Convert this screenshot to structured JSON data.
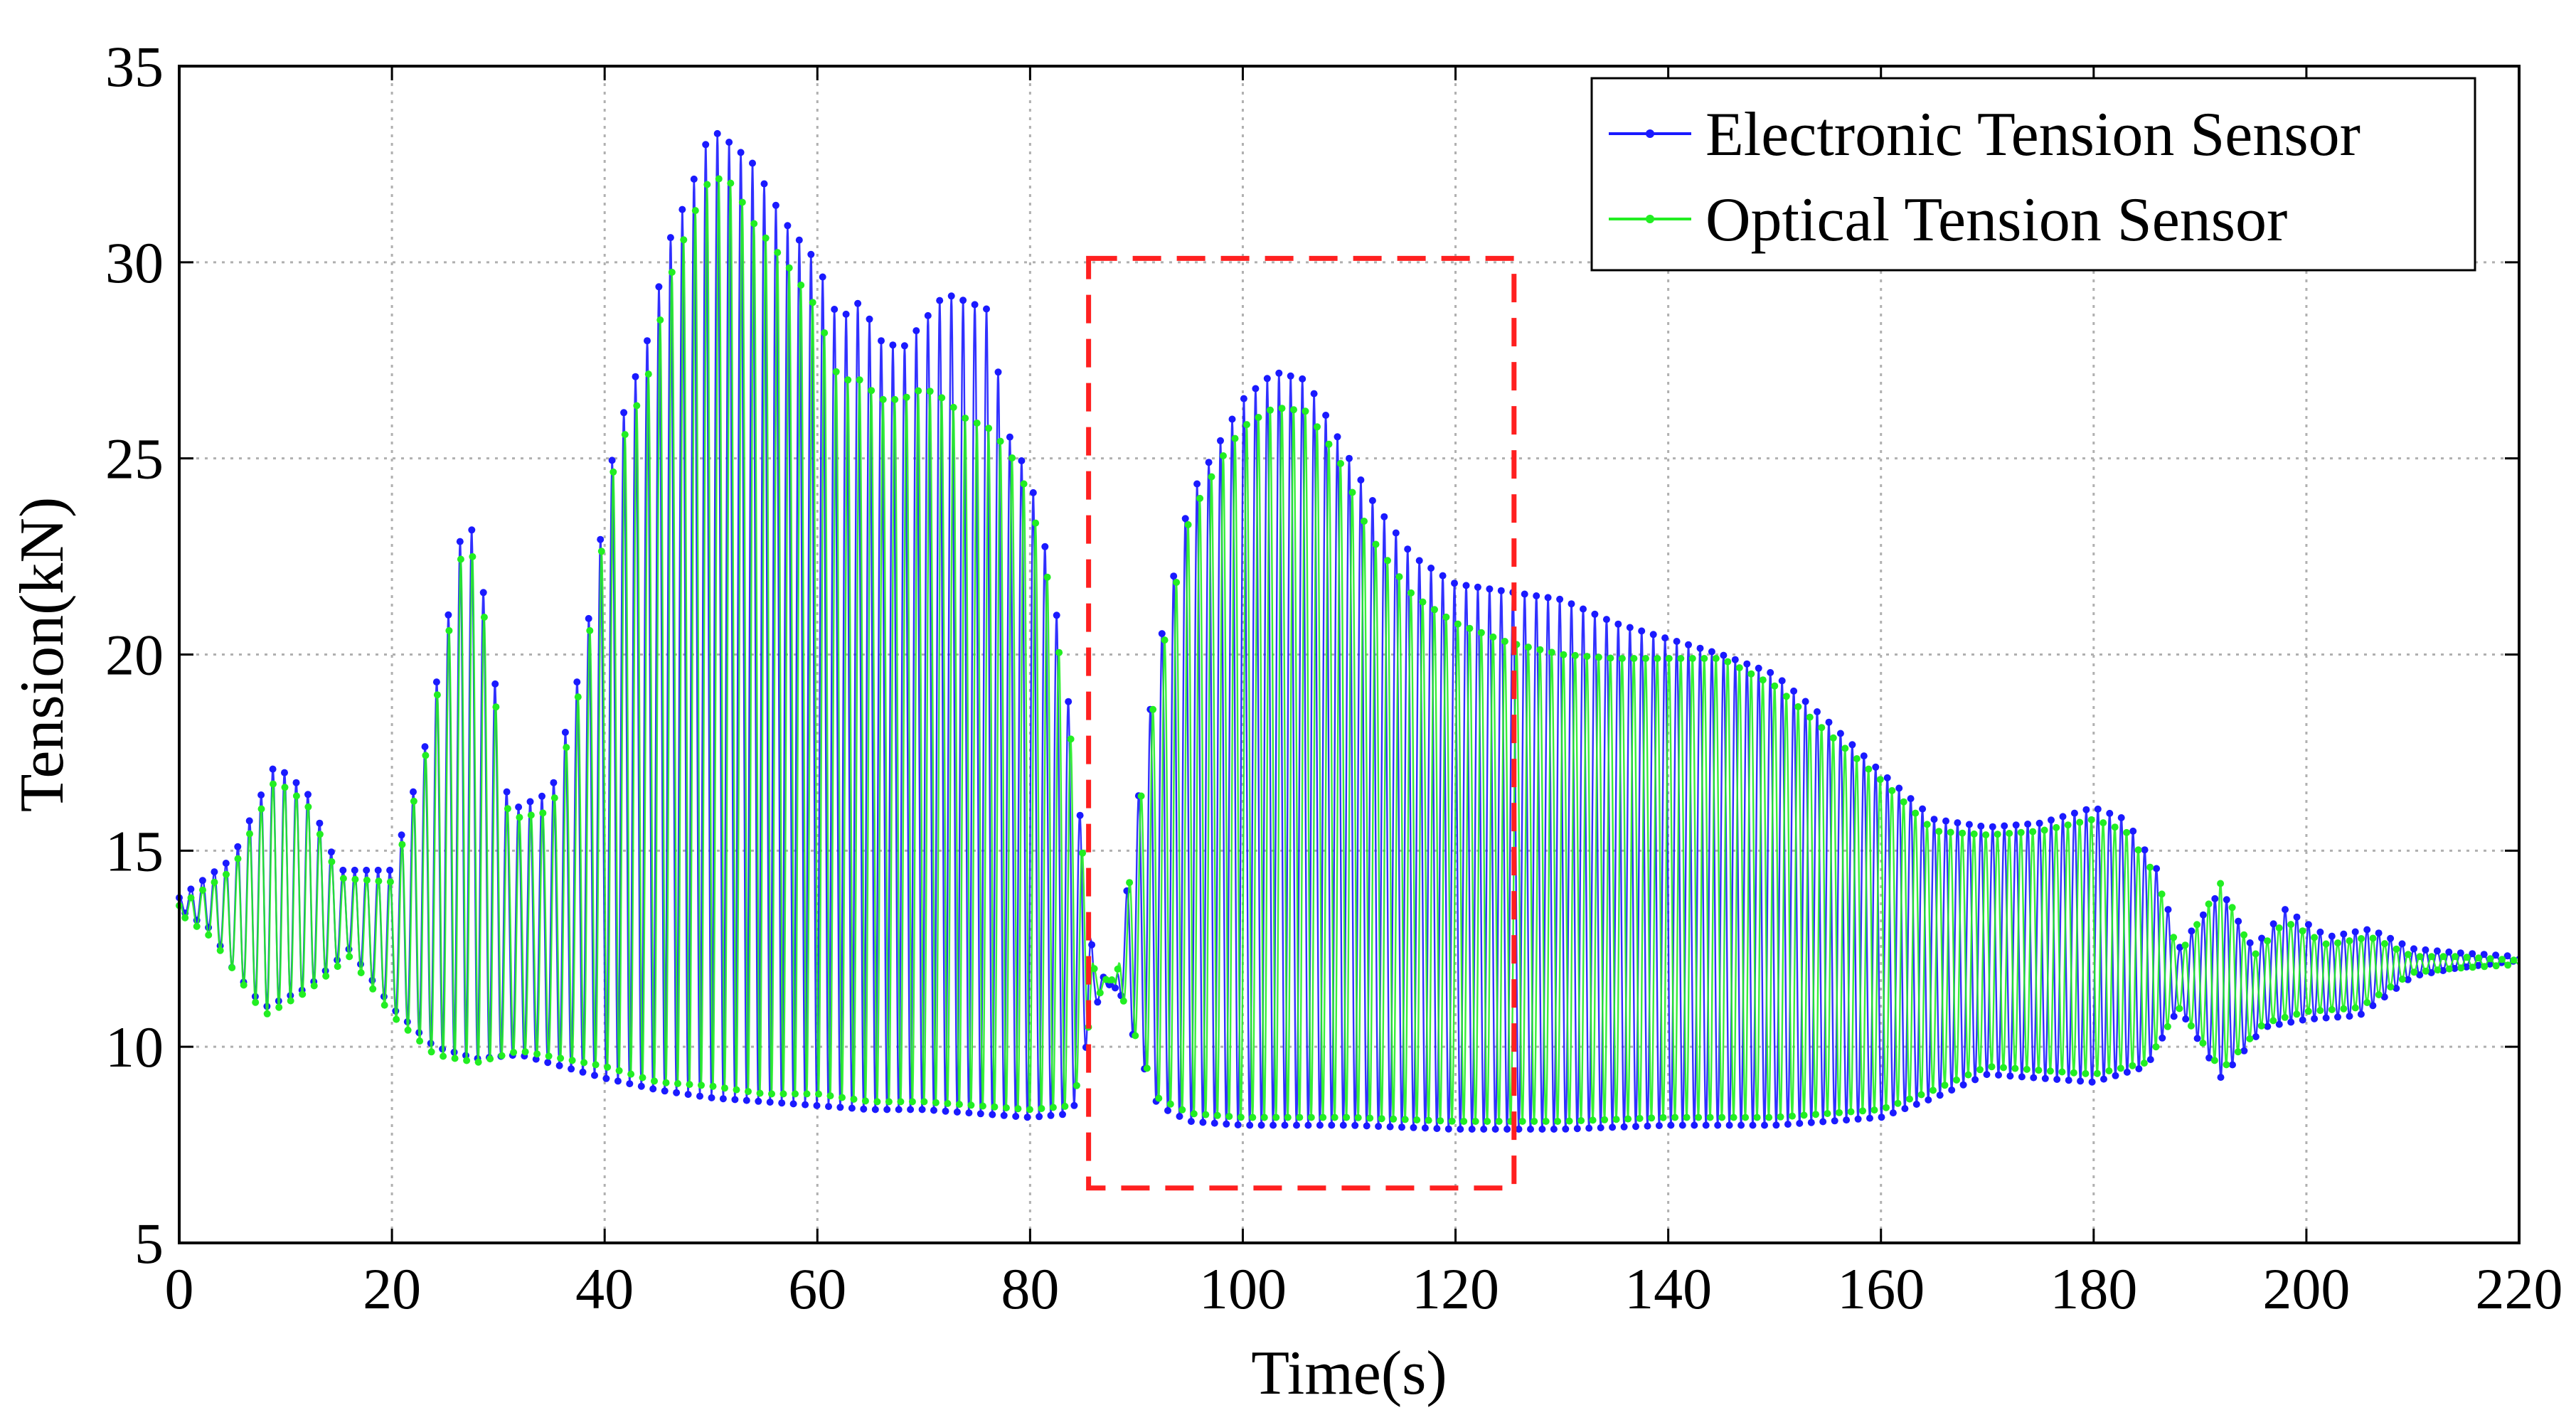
{
  "chart_data": {
    "type": "line",
    "title": "",
    "xlabel": "Time(s)",
    "ylabel": "Tension(kN)",
    "xlim": [
      0,
      220
    ],
    "ylim": [
      5,
      35
    ],
    "xticks": [
      0,
      20,
      40,
      60,
      80,
      100,
      120,
      140,
      160,
      180,
      200,
      220
    ],
    "yticks": [
      5,
      10,
      15,
      20,
      25,
      30,
      35
    ],
    "xtick_labels": [
      "0",
      "20",
      "40",
      "60",
      "80",
      "100",
      "120",
      "140",
      "160",
      "180",
      "200",
      "220"
    ],
    "ytick_labels": [
      "5",
      "10",
      "15",
      "20",
      "25",
      "30",
      "35"
    ],
    "grid": true,
    "legend_position": "top-right",
    "colors": {
      "electronic": "#1a1aff",
      "optical": "#22ee22",
      "highlight_box": "#ff2020",
      "grid": "#b0b0b0",
      "axis": "#000000"
    },
    "series": [
      {
        "name": "Electronic Tension Sensor",
        "color": "#1a1aff",
        "envelope_upper": [
          [
            0,
            13.8
          ],
          [
            5,
            14.8
          ],
          [
            9,
            17.2
          ],
          [
            12,
            16.5
          ],
          [
            15,
            14.5
          ],
          [
            20,
            14.5
          ],
          [
            23,
            17.5
          ],
          [
            25,
            20.5
          ],
          [
            27,
            23.9
          ],
          [
            29,
            21
          ],
          [
            31,
            16
          ],
          [
            35,
            16.5
          ],
          [
            38,
            20
          ],
          [
            41,
            25.5
          ],
          [
            44,
            28
          ],
          [
            46,
            30.5
          ],
          [
            48,
            31.8
          ],
          [
            50,
            33.4
          ],
          [
            52,
            33
          ],
          [
            54,
            32.5
          ],
          [
            57,
            31
          ],
          [
            60,
            30
          ],
          [
            62,
            28.5
          ],
          [
            64,
            29
          ],
          [
            66,
            28
          ],
          [
            68,
            27.8
          ],
          [
            70,
            28.5
          ],
          [
            72,
            29.2
          ],
          [
            74,
            29
          ],
          [
            76,
            28.8
          ],
          [
            78,
            25.6
          ],
          [
            80,
            24.5
          ],
          [
            82,
            22
          ],
          [
            84,
            18
          ],
          [
            86,
            12
          ],
          [
            88,
            11.5
          ],
          [
            90,
            16
          ],
          [
            92,
            20
          ],
          [
            95,
            24
          ],
          [
            98,
            25.5
          ],
          [
            100,
            26.5
          ],
          [
            103,
            27.2
          ],
          [
            106,
            27
          ],
          [
            109,
            25.5
          ],
          [
            112,
            24
          ],
          [
            116,
            22.5
          ],
          [
            120,
            21.8
          ],
          [
            125,
            21.6
          ],
          [
            130,
            21.4
          ],
          [
            135,
            20.8
          ],
          [
            140,
            20.4
          ],
          [
            145,
            20
          ],
          [
            150,
            19.5
          ],
          [
            155,
            18.3
          ],
          [
            160,
            17
          ],
          [
            165,
            15.8
          ],
          [
            170,
            15.6
          ],
          [
            175,
            15.7
          ],
          [
            180,
            16.1
          ],
          [
            183,
            15.8
          ],
          [
            186,
            14.5
          ],
          [
            188,
            12.5
          ],
          [
            192,
            14
          ],
          [
            195,
            12.5
          ],
          [
            198,
            13.5
          ],
          [
            202,
            12.8
          ],
          [
            206,
            13
          ],
          [
            210,
            12.5
          ],
          [
            214,
            12.4
          ],
          [
            220,
            12.3
          ]
        ],
        "envelope_lower": [
          [
            0,
            13.5
          ],
          [
            3,
            13
          ],
          [
            5,
            12
          ],
          [
            8,
            11
          ],
          [
            12,
            11.5
          ],
          [
            16,
            12.5
          ],
          [
            20,
            11
          ],
          [
            24,
            10
          ],
          [
            28,
            9.7
          ],
          [
            32,
            9.8
          ],
          [
            36,
            9.5
          ],
          [
            40,
            9.2
          ],
          [
            45,
            8.9
          ],
          [
            50,
            8.7
          ],
          [
            55,
            8.6
          ],
          [
            60,
            8.5
          ],
          [
            65,
            8.4
          ],
          [
            70,
            8.4
          ],
          [
            75,
            8.3
          ],
          [
            80,
            8.2
          ],
          [
            84,
            8.3
          ],
          [
            86,
            11
          ],
          [
            88,
            11.8
          ],
          [
            90,
            10
          ],
          [
            92,
            8.5
          ],
          [
            95,
            8.1
          ],
          [
            100,
            8
          ],
          [
            110,
            8
          ],
          [
            120,
            7.9
          ],
          [
            130,
            7.9
          ],
          [
            140,
            8
          ],
          [
            150,
            8
          ],
          [
            160,
            8.2
          ],
          [
            165,
            8.7
          ],
          [
            170,
            9.3
          ],
          [
            175,
            9.2
          ],
          [
            180,
            9.1
          ],
          [
            185,
            9.5
          ],
          [
            188,
            11
          ],
          [
            192,
            9.2
          ],
          [
            196,
            10.5
          ],
          [
            200,
            10.7
          ],
          [
            205,
            10.8
          ],
          [
            210,
            11.8
          ],
          [
            214,
            12
          ],
          [
            220,
            12.2
          ]
        ]
      },
      {
        "name": "Optical Tension Sensor",
        "color": "#22ee22",
        "envelope_upper": [
          [
            0,
            13.6
          ],
          [
            5,
            14.5
          ],
          [
            9,
            16.8
          ],
          [
            12,
            16.2
          ],
          [
            15,
            14.3
          ],
          [
            20,
            14.2
          ],
          [
            23,
            17.2
          ],
          [
            25,
            20
          ],
          [
            27,
            23.3
          ],
          [
            29,
            20.5
          ],
          [
            31,
            15.8
          ],
          [
            35,
            16
          ],
          [
            38,
            19.5
          ],
          [
            41,
            25
          ],
          [
            44,
            27
          ],
          [
            46,
            29.5
          ],
          [
            48,
            31
          ],
          [
            50,
            32.2
          ],
          [
            52,
            32
          ],
          [
            54,
            31
          ],
          [
            57,
            30
          ],
          [
            60,
            28.8
          ],
          [
            62,
            27
          ],
          [
            64,
            27
          ],
          [
            66,
            26.5
          ],
          [
            68,
            26.5
          ],
          [
            70,
            26.8
          ],
          [
            72,
            26.5
          ],
          [
            74,
            26
          ],
          [
            76,
            25.8
          ],
          [
            78,
            25.2
          ],
          [
            80,
            24
          ],
          [
            82,
            21.5
          ],
          [
            84,
            17.5
          ],
          [
            86,
            12
          ],
          [
            88,
            11.5
          ],
          [
            90,
            15.5
          ],
          [
            92,
            19.5
          ],
          [
            95,
            23.5
          ],
          [
            98,
            25
          ],
          [
            100,
            25.8
          ],
          [
            103,
            26.3
          ],
          [
            106,
            26.2
          ],
          [
            109,
            25
          ],
          [
            112,
            23
          ],
          [
            116,
            21.5
          ],
          [
            120,
            20.8
          ],
          [
            125,
            20.3
          ],
          [
            130,
            20
          ],
          [
            135,
            19.9
          ],
          [
            140,
            19.9
          ],
          [
            145,
            19.9
          ],
          [
            150,
            19.2
          ],
          [
            155,
            18
          ],
          [
            160,
            16.8
          ],
          [
            165,
            15.5
          ],
          [
            170,
            15.4
          ],
          [
            175,
            15.5
          ],
          [
            180,
            15.8
          ],
          [
            183,
            15.5
          ],
          [
            186,
            14.3
          ],
          [
            188,
            12.3
          ],
          [
            192,
            14.2
          ],
          [
            195,
            12.3
          ],
          [
            198,
            13.2
          ],
          [
            202,
            12.6
          ],
          [
            206,
            12.8
          ],
          [
            210,
            12.3
          ],
          [
            214,
            12.3
          ],
          [
            220,
            12.2
          ]
        ],
        "envelope_lower": [
          [
            0,
            13.4
          ],
          [
            3,
            12.8
          ],
          [
            5,
            12
          ],
          [
            8,
            10.8
          ],
          [
            12,
            11.4
          ],
          [
            16,
            12.3
          ],
          [
            20,
            10.8
          ],
          [
            24,
            9.8
          ],
          [
            28,
            9.6
          ],
          [
            32,
            9.9
          ],
          [
            36,
            9.7
          ],
          [
            40,
            9.5
          ],
          [
            45,
            9.1
          ],
          [
            50,
            9
          ],
          [
            55,
            8.8
          ],
          [
            60,
            8.8
          ],
          [
            65,
            8.6
          ],
          [
            70,
            8.6
          ],
          [
            75,
            8.5
          ],
          [
            80,
            8.4
          ],
          [
            84,
            8.5
          ],
          [
            86,
            11.2
          ],
          [
            88,
            11.8
          ],
          [
            90,
            10.2
          ],
          [
            92,
            8.7
          ],
          [
            95,
            8.3
          ],
          [
            100,
            8.2
          ],
          [
            110,
            8.2
          ],
          [
            120,
            8.1
          ],
          [
            130,
            8.1
          ],
          [
            140,
            8.2
          ],
          [
            150,
            8.2
          ],
          [
            160,
            8.4
          ],
          [
            165,
            8.9
          ],
          [
            170,
            9.5
          ],
          [
            175,
            9.4
          ],
          [
            180,
            9.3
          ],
          [
            185,
            9.6
          ],
          [
            188,
            11
          ],
          [
            192,
            9.4
          ],
          [
            196,
            10.6
          ],
          [
            200,
            10.9
          ],
          [
            205,
            11
          ],
          [
            210,
            11.9
          ],
          [
            214,
            12
          ],
          [
            220,
            12.1
          ]
        ]
      }
    ],
    "annotations": [
      {
        "type": "dashed-rectangle",
        "x_range": [
          85.5,
          125.5
        ],
        "y_range": [
          6.4,
          30.1
        ],
        "color": "#ff2020"
      }
    ]
  }
}
